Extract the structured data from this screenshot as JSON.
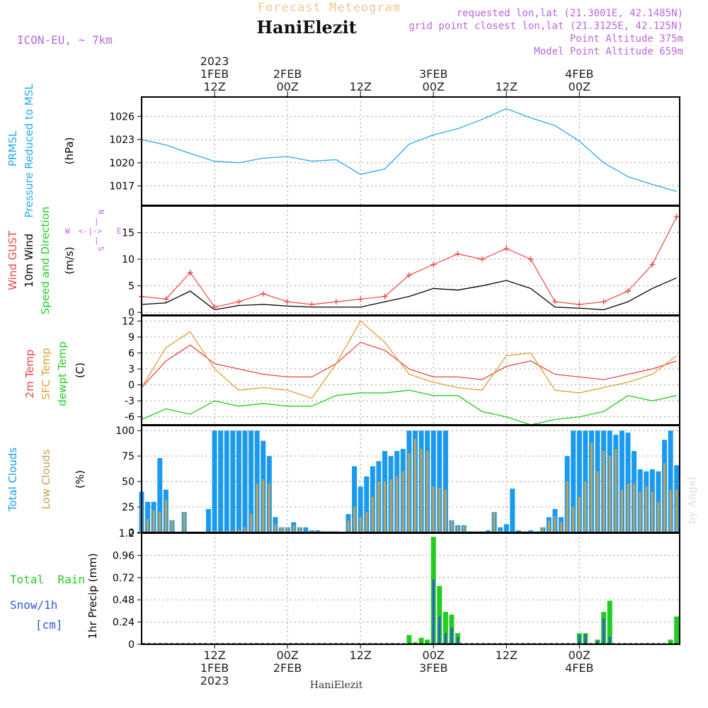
{
  "header": {
    "product": "Forecast Meteogram",
    "location": "HaniElezit",
    "model": "ICON-EU, ~ 7km",
    "requested": "requested lon,lat (21.3001E, 42.1485N)",
    "gridpoint": "grid point closest lon,lat (21.3125E, 42.125N)",
    "point_alt": "Point Altitude 375m",
    "model_alt": "Model Point Altitude 659m",
    "footer_location": "HaniElezit",
    "credit": "by Angel"
  },
  "time_axis": {
    "top_labels": [
      {
        "hour": 12,
        "lines": [
          "2023",
          "1FEB",
          "12Z"
        ]
      },
      {
        "hour": 24,
        "lines": [
          "2FEB",
          "00Z"
        ]
      },
      {
        "hour": 36,
        "lines": [
          "12Z"
        ]
      },
      {
        "hour": 48,
        "lines": [
          "3FEB",
          "00Z"
        ]
      },
      {
        "hour": 60,
        "lines": [
          "12Z"
        ]
      },
      {
        "hour": 72,
        "lines": [
          "4FEB",
          "00Z"
        ]
      }
    ],
    "bottom_labels": [
      {
        "hour": 12,
        "lines": [
          "12Z",
          "1FEB",
          "2023"
        ]
      },
      {
        "hour": 24,
        "lines": [
          "00Z",
          "2FEB"
        ]
      },
      {
        "hour": 36,
        "lines": [
          "12Z"
        ]
      },
      {
        "hour": 48,
        "lines": [
          "00Z",
          "3FEB"
        ]
      },
      {
        "hour": 60,
        "lines": [
          "12Z"
        ]
      },
      {
        "hour": 72,
        "lines": [
          "00Z",
          "4FEB"
        ]
      }
    ]
  },
  "panels": {
    "pressure": {
      "labels": [
        "PRMSL",
        "Pressure Reduced to MSL"
      ],
      "unit": "(hPa)"
    },
    "wind": {
      "labels": [
        "Wind GUST",
        "10m Wind",
        "Speed and Direction"
      ],
      "unit": "(m/s)",
      "compass": {
        "w": "W",
        "e": "E",
        "n": "N",
        "s": "S",
        "h": "<-|->",
        "v": "|"
      }
    },
    "temp": {
      "labels": [
        "2m Temp",
        "SFC Temp",
        "dewpt Temp"
      ],
      "unit": "(C)"
    },
    "clouds": {
      "labels": [
        "Total Clouds",
        "Low Clouds"
      ],
      "unit": "(%)"
    },
    "precip": {
      "labels": [
        "Total  Rain",
        "Snow/1h",
        "[cm]"
      ],
      "unit": "1hr Precip (mm)"
    }
  },
  "colors": {
    "pressure": "#22aaee",
    "gust": "#ee4444",
    "wind": "#000000",
    "temp2m": "#ee4444",
    "sfc": "#e0a030",
    "dewpt": "#22cc22",
    "total_clouds": "#1a9aee",
    "low_clouds": "#c8a050",
    "rain": "#22cc22",
    "snow": "#3355dd",
    "model": "#bb66dd",
    "title": "#f0c890"
  },
  "chart_data": [
    {
      "type": "line",
      "title": "PRMSL Pressure Reduced to MSL",
      "ylabel": "hPa",
      "ylim": [
        1014.5,
        1028.5
      ],
      "yticks": [
        1017,
        1020,
        1023,
        1026
      ],
      "x_hours": [
        0,
        4,
        8,
        12,
        16,
        20,
        24,
        28,
        32,
        36,
        40,
        44,
        48,
        52,
        56,
        60,
        64,
        68,
        72,
        76,
        80,
        84,
        88
      ],
      "series": [
        {
          "name": "PRMSL",
          "values": [
            1023,
            1022.3,
            1021.2,
            1020.2,
            1020,
            1020.6,
            1020.8,
            1020.2,
            1020.4,
            1018.5,
            1019.2,
            1022.4,
            1023.6,
            1024.4,
            1025.6,
            1027,
            1025.8,
            1024.8,
            1022.8,
            1020,
            1018.2,
            1017.2,
            1016.3
          ]
        }
      ]
    },
    {
      "type": "line",
      "title": "Wind GUST / 10m Wind Speed and Direction",
      "ylabel": "m/s",
      "ylim": [
        -0.5,
        20
      ],
      "yticks": [
        0,
        5,
        10,
        15
      ],
      "x_hours": [
        0,
        4,
        8,
        12,
        16,
        20,
        24,
        28,
        32,
        36,
        40,
        44,
        48,
        52,
        56,
        60,
        64,
        68,
        72,
        76,
        80,
        84,
        88
      ],
      "series": [
        {
          "name": "Wind GUST",
          "values": [
            3,
            2.5,
            7.5,
            1,
            2,
            3.5,
            2,
            1.5,
            2,
            2.5,
            3,
            7,
            9,
            11,
            10,
            12,
            10,
            2,
            1.5,
            2,
            4,
            9,
            18
          ]
        },
        {
          "name": "10m Wind",
          "values": [
            1.5,
            1.8,
            4,
            0.5,
            1.3,
            1.5,
            1.2,
            1,
            1,
            1,
            2,
            3,
            4.5,
            4.2,
            5,
            6,
            4.5,
            1,
            0.8,
            0.5,
            2,
            4.5,
            6.5
          ]
        }
      ]
    },
    {
      "type": "line",
      "title": "2m Temp / SFC Temp / dewpt Temp",
      "ylabel": "C",
      "ylim": [
        -7.5,
        13
      ],
      "yticks": [
        -6,
        -3,
        0,
        3,
        6,
        9,
        12
      ],
      "x_hours": [
        0,
        4,
        8,
        12,
        16,
        20,
        24,
        28,
        32,
        36,
        40,
        44,
        48,
        52,
        56,
        60,
        64,
        68,
        72,
        76,
        80,
        84,
        88
      ],
      "series": [
        {
          "name": "2m Temp",
          "values": [
            -0.5,
            4.5,
            7.5,
            4,
            3,
            2,
            1.5,
            1.5,
            4,
            8,
            6.5,
            3,
            1.5,
            1.5,
            1,
            3.5,
            4.5,
            2,
            1.5,
            1,
            2,
            3,
            4.5
          ]
        },
        {
          "name": "SFC Temp",
          "values": [
            -0.5,
            7,
            10,
            3,
            -1,
            -0.5,
            -1,
            -2.5,
            4,
            12,
            8,
            2,
            0.5,
            -0.5,
            -1,
            5.5,
            6,
            -1,
            -1.5,
            -0.5,
            0.5,
            2,
            5.5
          ]
        },
        {
          "name": "dewpt Temp",
          "values": [
            -6.5,
            -4.5,
            -5.5,
            -3,
            -4,
            -3.5,
            -4,
            -4,
            -2,
            -1.5,
            -1.5,
            -1,
            -2,
            -2,
            -5,
            -6,
            -7.5,
            -6.5,
            -6,
            -5,
            -2,
            -3,
            -2
          ]
        }
      ]
    },
    {
      "type": "bar",
      "title": "Total Clouds / Low Clouds",
      "ylabel": "%",
      "ylim": [
        0,
        105
      ],
      "yticks": [
        0,
        25,
        50,
        75,
        100
      ],
      "x_hours": [
        0,
        1,
        2,
        3,
        4,
        5,
        6,
        7,
        8,
        9,
        10,
        11,
        12,
        13,
        14,
        15,
        16,
        17,
        18,
        19,
        20,
        21,
        22,
        23,
        24,
        25,
        26,
        27,
        28,
        29,
        30,
        31,
        32,
        33,
        34,
        35,
        36,
        37,
        38,
        39,
        40,
        41,
        42,
        43,
        44,
        45,
        46,
        47,
        48,
        49,
        50,
        51,
        52,
        53,
        54,
        55,
        56,
        57,
        58,
        59,
        60,
        61,
        62,
        63,
        64,
        65,
        66,
        67,
        68,
        69,
        70,
        71,
        72,
        73,
        74,
        75,
        76,
        77,
        78,
        79,
        80,
        81,
        82,
        83,
        84,
        85,
        86,
        87,
        88
      ],
      "series": [
        {
          "name": "Total Clouds",
          "values": [
            40,
            30,
            30,
            73,
            42,
            12,
            0,
            20,
            0,
            0,
            0,
            23,
            100,
            100,
            100,
            100,
            100,
            100,
            100,
            100,
            90,
            75,
            15,
            5,
            5,
            10,
            5,
            5,
            2,
            2,
            1,
            1,
            1,
            0,
            18,
            65,
            45,
            55,
            65,
            70,
            80,
            75,
            80,
            82,
            100,
            100,
            100,
            100,
            100,
            100,
            100,
            12,
            7,
            7,
            1,
            1,
            1,
            2,
            20,
            5,
            8,
            43,
            2,
            1,
            2,
            1,
            5,
            15,
            23,
            15,
            75,
            100,
            100,
            100,
            100,
            100,
            100,
            100,
            96,
            100,
            98,
            80,
            62,
            60,
            62,
            60,
            91,
            100,
            66
          ]
        },
        {
          "name": "Low Clouds",
          "values": [
            28,
            13,
            22,
            20,
            32,
            12,
            0,
            20,
            0,
            0,
            0,
            0,
            2,
            1,
            2,
            2,
            3,
            5,
            18,
            48,
            52,
            48,
            8,
            5,
            5,
            7,
            5,
            1,
            1,
            1,
            0,
            0,
            0,
            0,
            12,
            25,
            15,
            20,
            35,
            50,
            50,
            52,
            55,
            60,
            78,
            92,
            82,
            80,
            45,
            44,
            42,
            12,
            6,
            6,
            1,
            1,
            1,
            0,
            20,
            2,
            0,
            0,
            0,
            0,
            0,
            0,
            5,
            12,
            16,
            10,
            50,
            25,
            35,
            50,
            88,
            60,
            80,
            75,
            82,
            42,
            48,
            48,
            40,
            45,
            40,
            30,
            68,
            42,
            42
          ]
        }
      ]
    },
    {
      "type": "bar",
      "title": "1hr Precip (Total Rain / Snow)",
      "ylabel": "mm",
      "ylim": [
        0,
        1.2
      ],
      "yticks": [
        0,
        0.24,
        0.48,
        0.72,
        0.96,
        1.2
      ],
      "x_hours": [
        0,
        1,
        2,
        3,
        4,
        5,
        6,
        7,
        8,
        9,
        10,
        11,
        12,
        13,
        14,
        15,
        16,
        17,
        18,
        19,
        20,
        21,
        22,
        23,
        24,
        25,
        26,
        27,
        28,
        29,
        30,
        31,
        32,
        33,
        34,
        35,
        36,
        37,
        38,
        39,
        40,
        41,
        42,
        43,
        44,
        45,
        46,
        47,
        48,
        49,
        50,
        51,
        52,
        53,
        54,
        55,
        56,
        57,
        58,
        59,
        60,
        61,
        62,
        63,
        64,
        65,
        66,
        67,
        68,
        69,
        70,
        71,
        72,
        73,
        74,
        75,
        76,
        77,
        78,
        79,
        80,
        81,
        82,
        83,
        84,
        85,
        86,
        87,
        88
      ],
      "series": [
        {
          "name": "Total Rain",
          "values": [
            0,
            0,
            0,
            0,
            0,
            0,
            0,
            0,
            0,
            0,
            0,
            0,
            0,
            0,
            0,
            0,
            0,
            0,
            0,
            0,
            0,
            0,
            0,
            0,
            0,
            0,
            0,
            0,
            0,
            0,
            0,
            0,
            0,
            0,
            0,
            0,
            0,
            0,
            0,
            0,
            0,
            0,
            0,
            0,
            0.1,
            0.02,
            0.07,
            0.05,
            1.16,
            0.63,
            0.35,
            0.32,
            0.12,
            0,
            0,
            0,
            0,
            0,
            0,
            0,
            0,
            0,
            0,
            0,
            0,
            0,
            0,
            0,
            0,
            0,
            0,
            0,
            0.12,
            0.12,
            0,
            0.05,
            0.35,
            0.47,
            0,
            0,
            0,
            0,
            0,
            0,
            0,
            0,
            0,
            0.05,
            0.3
          ]
        },
        {
          "name": "Snow/1h",
          "values": [
            0,
            0,
            0,
            0,
            0,
            0,
            0,
            0,
            0,
            0,
            0,
            0,
            0,
            0,
            0,
            0,
            0,
            0,
            0,
            0,
            0,
            0,
            0,
            0,
            0,
            0,
            0,
            0,
            0,
            0,
            0,
            0,
            0,
            0,
            0,
            0,
            0,
            0,
            0,
            0,
            0,
            0,
            0,
            0,
            0,
            0,
            0,
            0,
            0.7,
            0.3,
            0.12,
            0.18,
            0.08,
            0,
            0,
            0,
            0,
            0,
            0,
            0,
            0,
            0,
            0,
            0,
            0,
            0,
            0,
            0,
            0,
            0,
            0,
            0,
            0.1,
            0.11,
            0,
            0.04,
            0.28,
            0.08,
            0,
            0,
            0,
            0,
            0,
            0,
            0,
            0,
            0,
            0,
            0
          ]
        }
      ]
    }
  ]
}
